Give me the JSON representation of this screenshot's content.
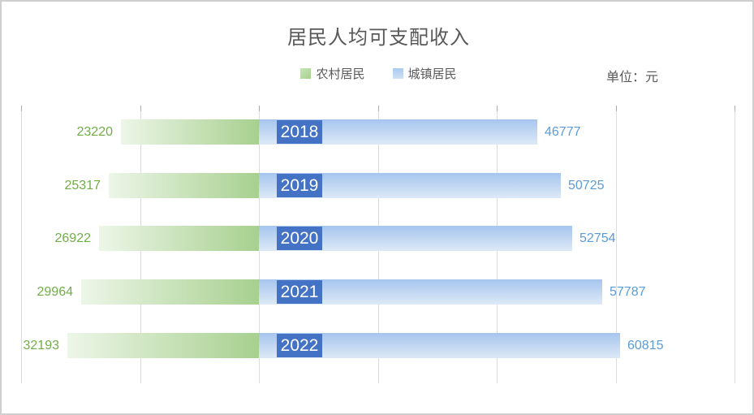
{
  "title": "居民人均可支配收入",
  "unit_label": "单位：元",
  "legend": [
    {
      "label": "农村居民",
      "color_top": "#c8e5b9",
      "color_bottom": "#a7d08f"
    },
    {
      "label": "城镇居民",
      "color_top": "#aacbf0",
      "color_bottom": "#cfe0f5"
    }
  ],
  "colors": {
    "title_text": "#595959",
    "rural_value_text": "#70ad47",
    "urban_value_text": "#5b9bd5",
    "year_box_fill": "#4472c4",
    "year_text": "#ffffff",
    "rural_bar_gradient": [
      "#edf6e8",
      "#a7d08f"
    ],
    "urban_bar_gradient": [
      "#a6c5ee",
      "#dde9f7"
    ],
    "gridline": "#dcdcdc",
    "canvas_border": "#cfcfcf"
  },
  "chart_data": {
    "type": "bar",
    "variant": "diverging-horizontal",
    "title": "居民人均可支配收入",
    "unit": "元",
    "categories": [
      "2018",
      "2019",
      "2020",
      "2021",
      "2022"
    ],
    "series": [
      {
        "name": "农村居民",
        "direction": "left",
        "values": [
          23220,
          25317,
          26922,
          29964,
          32193
        ]
      },
      {
        "name": "城镇居民",
        "direction": "right",
        "values": [
          46777,
          50725,
          52754,
          57787,
          60815
        ]
      }
    ],
    "axis": {
      "grid": true,
      "grid_interval": 20000,
      "left_max": 40000,
      "right_max": 80000,
      "tick_labels_visible": false
    },
    "legend_position": "top-center",
    "data_labels": "outside-end",
    "category_labels": "inside-base-of-right-series"
  }
}
